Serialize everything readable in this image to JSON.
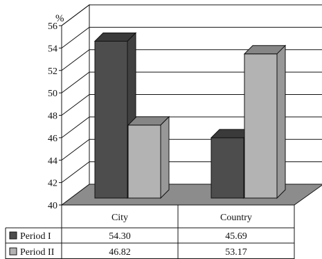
{
  "chart_data": {
    "type": "bar",
    "unit_label": "%",
    "categories": [
      "City",
      "Country"
    ],
    "series": [
      {
        "name": "Period I",
        "values": [
          54.3,
          45.69
        ],
        "color": "#4d4d4d"
      },
      {
        "name": "Period II",
        "values": [
          46.82,
          53.17
        ],
        "color": "#b3b3b3"
      }
    ],
    "value_labels": [
      [
        "54.30",
        "45.69"
      ],
      [
        "46.82",
        "53.17"
      ]
    ],
    "ylim": [
      40,
      56
    ],
    "y_ticks": [
      "40",
      "42",
      "44",
      "46",
      "48",
      "50",
      "52",
      "54",
      "56"
    ],
    "grid": true,
    "three_d": true,
    "floor_color": "#8c8c8c",
    "legend_placement": "data-table-below"
  }
}
